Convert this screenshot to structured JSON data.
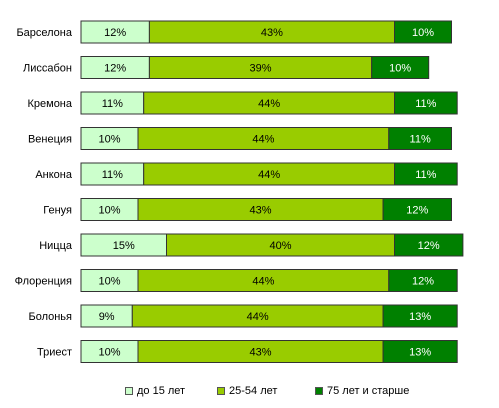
{
  "chart_data": {
    "type": "bar",
    "orientation": "horizontal",
    "stacked": true,
    "categories": [
      "Барселона",
      "Лиссабон",
      "Кремона",
      "Венеция",
      "Анкона",
      "Генуя",
      "Ницца",
      "Флоренция",
      "Болонья",
      "Триест"
    ],
    "series": [
      {
        "name": "до 15 лет",
        "color": "#ccffcc",
        "values": [
          12,
          12,
          11,
          10,
          11,
          10,
          15,
          10,
          9,
          10
        ],
        "labels": [
          "12%",
          "12%",
          "11%",
          "10%",
          "11%",
          "10%",
          "15%",
          "10%",
          "9%",
          "10%"
        ]
      },
      {
        "name": "25-54 лет",
        "color": "#99cc00",
        "values": [
          43,
          39,
          44,
          44,
          44,
          43,
          40,
          44,
          44,
          43
        ],
        "labels": [
          "43%",
          "39%",
          "44%",
          "44%",
          "44%",
          "43%",
          "40%",
          "44%",
          "44%",
          "43%"
        ]
      },
      {
        "name": "75 лет и старше",
        "color": "#008000",
        "values": [
          10,
          10,
          11,
          11,
          11,
          12,
          12,
          12,
          13,
          13
        ],
        "labels": [
          "10%",
          "10%",
          "11%",
          "11%",
          "11%",
          "12%",
          "12%",
          "12%",
          "13%",
          "13%"
        ]
      }
    ],
    "grid": false,
    "legend_position": "bottom"
  }
}
